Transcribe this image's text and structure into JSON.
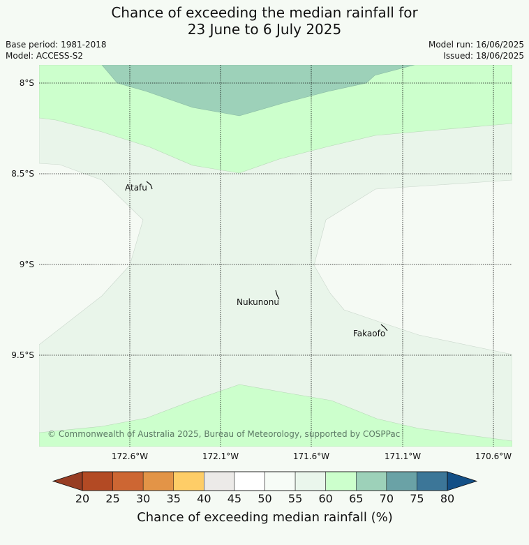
{
  "header": {
    "title_line1": "Chance of exceeding the median rainfall for",
    "title_line2": "23 June to 6 July 2025",
    "base_period": "Base period: 1981-2018",
    "model": "Model: ACCESS-S2",
    "model_run": "Model run: 16/06/2025",
    "issued": "Issued: 18/06/2025"
  },
  "map": {
    "lat_labels": [
      "8°S",
      "8.5°S",
      "9°S",
      "9.5°S"
    ],
    "lon_labels": [
      "172.6°W",
      "172.1°W",
      "171.6°W",
      "171.1°W",
      "170.6°W"
    ],
    "places": [
      "Atafu",
      "Nukunonu",
      "Fakaofo"
    ],
    "copyright": "© Commonwealth of Australia 2025, Bureau of Meteorology, supported by COSPPac",
    "colors": {
      "band_55_60": "#f5faf4",
      "band_60_65": "#e9f5ea",
      "band_65_70": "#ccffcc",
      "band_70_75": "#9dd1b9",
      "land": "#ffffff"
    }
  },
  "colorbar": {
    "ticks": [
      "20",
      "25",
      "30",
      "35",
      "40",
      "45",
      "50",
      "55",
      "60",
      "65",
      "70",
      "75",
      "80"
    ],
    "colors": [
      "#b34a24",
      "#cd6633",
      "#e39447",
      "#fecd67",
      "#eceae8",
      "#ffffff",
      "#f7fcf7",
      "#eaf6ec",
      "#ccffcc",
      "#9dd1b9",
      "#6aa2a6",
      "#3c7698"
    ],
    "under_color": "#973d23",
    "over_color": "#134f86",
    "title": "Chance of exceeding median rainfall (%)"
  }
}
